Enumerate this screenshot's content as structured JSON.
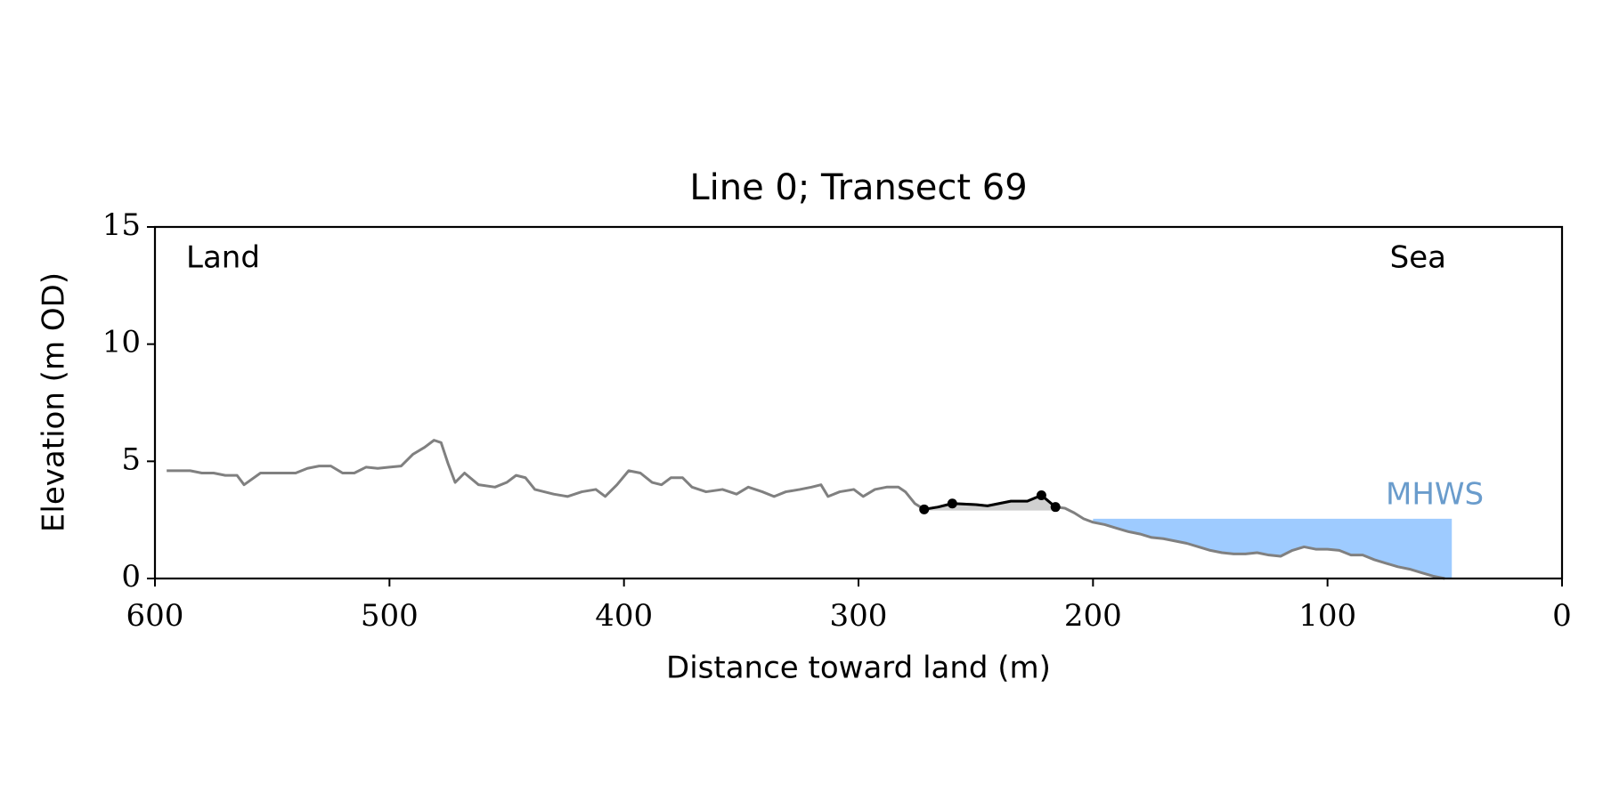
{
  "chart_data": {
    "type": "line",
    "title": "Line 0; Transect 69",
    "xlabel": "Distance toward land (m)",
    "ylabel": "Elevation (m OD)",
    "xlim": [
      600,
      0
    ],
    "xticks": [
      600,
      500,
      400,
      300,
      200,
      100,
      0
    ],
    "ylim": [
      0,
      15
    ],
    "yticks": [
      0,
      5,
      10,
      15
    ],
    "annotations": [
      "Land",
      "Sea"
    ],
    "mhws": {
      "label": "MHWS",
      "level": 2.55,
      "x": [
        200,
        47
      ],
      "color": "#9ecbff",
      "label_color": "#6a9ccc"
    },
    "series": [
      {
        "color": "#808080",
        "x": [
          595,
          590,
          585,
          580,
          575,
          570,
          565,
          562,
          555,
          550,
          545,
          540,
          535,
          530,
          525,
          520,
          515,
          510,
          505,
          500,
          495,
          490,
          485,
          481,
          478,
          475,
          472,
          468,
          462,
          455,
          450,
          446,
          442,
          438,
          430,
          424,
          418,
          412,
          408,
          403,
          398,
          393,
          388,
          384,
          380,
          375,
          371,
          365,
          358,
          352,
          347,
          341,
          336,
          331,
          325,
          320,
          316,
          313,
          308,
          302,
          298,
          293,
          288,
          283,
          280,
          276,
          272,
          266,
          260,
          250,
          245,
          240,
          235,
          228,
          222,
          216,
          212,
          208,
          204,
          200,
          195,
          190,
          185,
          180,
          175,
          170,
          165,
          160,
          155,
          150,
          145,
          140,
          135,
          130,
          125,
          120,
          115,
          110,
          105,
          100,
          95,
          90,
          85,
          80,
          75,
          70,
          65,
          60,
          55,
          50
        ],
        "values": [
          4.6,
          4.6,
          4.6,
          4.5,
          4.5,
          4.4,
          4.4,
          4.0,
          4.5,
          4.5,
          4.5,
          4.5,
          4.7,
          4.8,
          4.8,
          4.5,
          4.5,
          4.75,
          4.7,
          4.75,
          4.8,
          5.3,
          5.6,
          5.9,
          5.8,
          4.9,
          4.1,
          4.5,
          4.0,
          3.9,
          4.1,
          4.4,
          4.3,
          3.8,
          3.6,
          3.5,
          3.7,
          3.8,
          3.5,
          4.0,
          4.6,
          4.5,
          4.1,
          4.0,
          4.3,
          4.3,
          3.9,
          3.7,
          3.8,
          3.6,
          3.9,
          3.7,
          3.5,
          3.7,
          3.8,
          3.9,
          4.0,
          3.5,
          3.7,
          3.8,
          3.5,
          3.8,
          3.9,
          3.9,
          3.7,
          3.2,
          2.95,
          3.05,
          3.2,
          3.15,
          3.1,
          3.2,
          3.3,
          3.3,
          3.55,
          3.05,
          3.0,
          2.8,
          2.55,
          2.4,
          2.3,
          2.15,
          2.0,
          1.9,
          1.75,
          1.7,
          1.6,
          1.5,
          1.35,
          1.2,
          1.1,
          1.05,
          1.05,
          1.1,
          1.0,
          0.95,
          1.2,
          1.35,
          1.25,
          1.25,
          1.2,
          1.0,
          1.0,
          0.8,
          0.65,
          0.5,
          0.4,
          0.25,
          0.1,
          0.0
        ]
      },
      {
        "color": "#000000",
        "fill_to": 2.9,
        "fill_color": "#d0d0d0",
        "x": [
          272,
          266,
          260,
          250,
          245,
          240,
          235,
          228,
          222,
          216
        ],
        "values": [
          2.95,
          3.05,
          3.2,
          3.15,
          3.1,
          3.2,
          3.3,
          3.3,
          3.55,
          3.05
        ]
      },
      {
        "type": "scatter",
        "color": "#000000",
        "x": [
          272,
          260,
          222,
          216
        ],
        "values": [
          2.95,
          3.2,
          3.55,
          3.05
        ]
      }
    ]
  }
}
